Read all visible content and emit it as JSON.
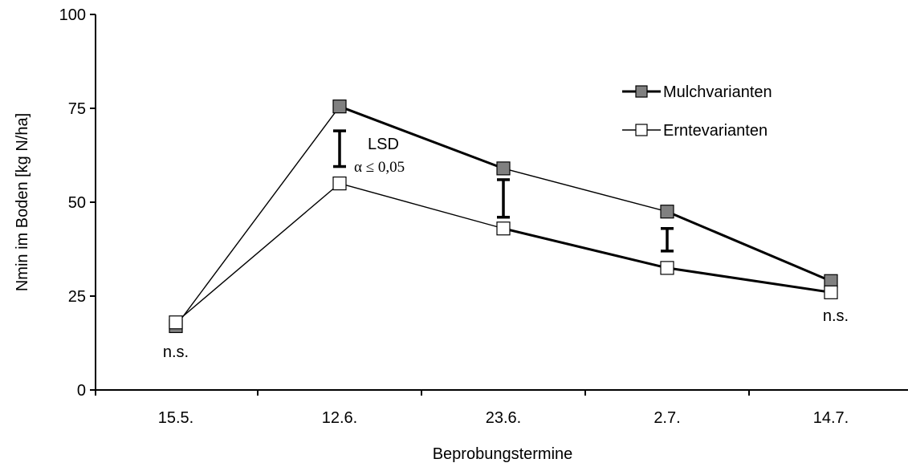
{
  "chart_data": {
    "type": "line",
    "xlabel": "Beprobungstermine",
    "ylabel": "Nmin im Boden  [kg N/ha]",
    "categories": [
      "15.5.",
      "12.6.",
      "23.6.",
      "2.7.",
      "14.7."
    ],
    "ylim": [
      0,
      100
    ],
    "yticks": [
      0,
      25,
      50,
      75,
      100
    ],
    "grid": false,
    "legend_position": "top-right",
    "series": [
      {
        "name": "Mulchvarianten",
        "values": [
          17,
          75.5,
          59,
          47.5,
          29
        ],
        "marker": "square-filled",
        "color": "#808080"
      },
      {
        "name": "Erntevarianten",
        "values": [
          18,
          55,
          43,
          32.5,
          26
        ],
        "marker": "square-open",
        "color": "#ffffff"
      }
    ],
    "lsd_bars": [
      {
        "category": "12.6.",
        "low": 59.5,
        "high": 69
      },
      {
        "category": "23.6.",
        "low": 46,
        "high": 56
      },
      {
        "category": "2.7.",
        "low": 37,
        "high": 43
      }
    ],
    "annotations": {
      "ns_first": "n.s.",
      "ns_last": "n.s.",
      "lsd_label": "LSD",
      "alpha_label": "α ≤ 0,05"
    }
  }
}
